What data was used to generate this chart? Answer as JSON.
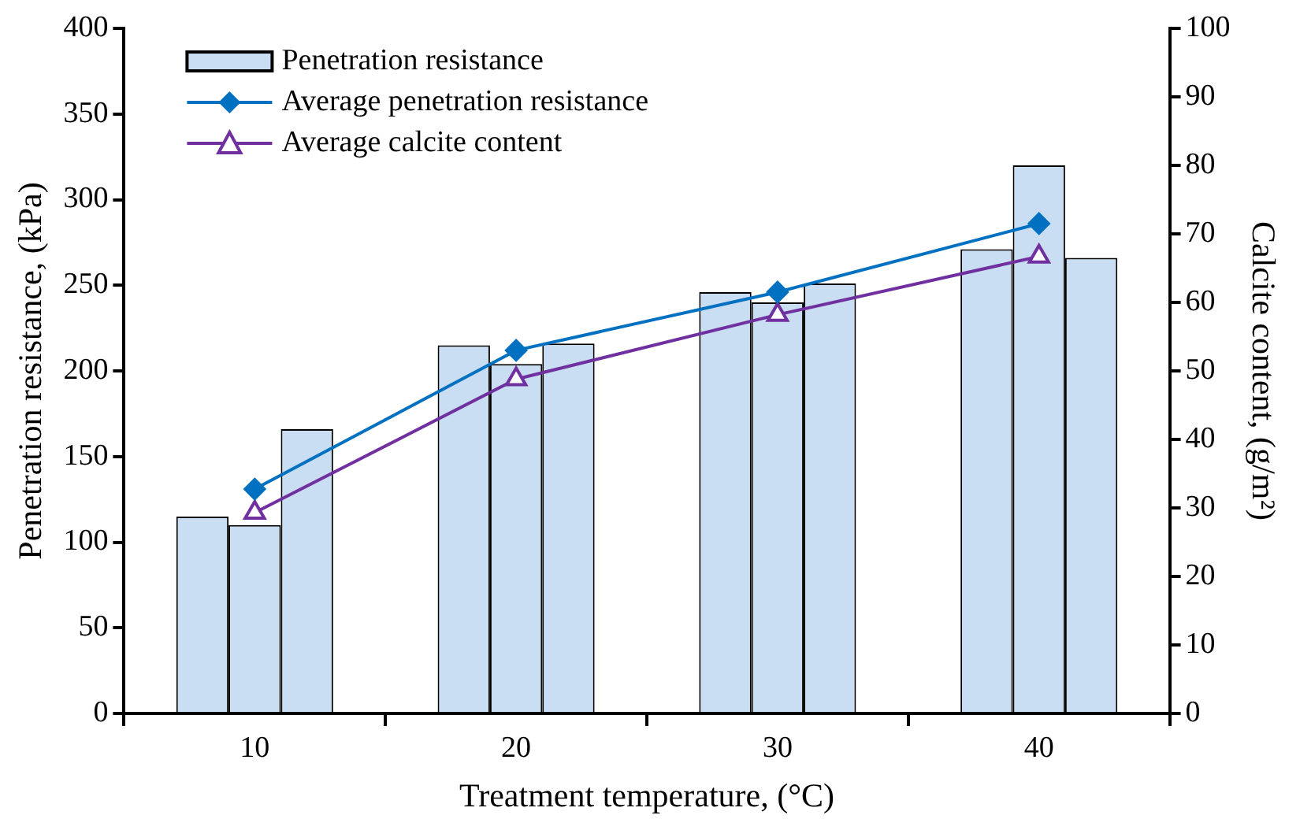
{
  "chart_data": {
    "type": "bar",
    "xlabel": "Treatment temperature, (°C)",
    "ylabel": "Penetration resistance, (kPa)",
    "y2label": "Calcite content, (g/m²)",
    "categories": [
      "10",
      "20",
      "30",
      "40"
    ],
    "series": [
      {
        "name": "Penetration resistance",
        "color": "#c9def2",
        "values": [
          115,
          215,
          246,
          271
        ]
      },
      {
        "color": "#c9def2",
        "values": [
          110,
          204,
          240,
          320
        ]
      },
      {
        "color": "#c9def2",
        "values": [
          166,
          216,
          251,
          266
        ]
      },
      {
        "type": "line",
        "name": "Average penetration resistance",
        "color": "#0070c0",
        "marker": "diamond",
        "values": [
          131,
          212,
          246,
          286
        ]
      },
      {
        "type": "line",
        "name": "Average calcite content",
        "color": "#7030a0",
        "marker": "triangle",
        "axis": "y2",
        "values": [
          29.3,
          48.8,
          58.2,
          66.7
        ]
      }
    ],
    "ylim": [
      0,
      400
    ],
    "yticks": [
      0,
      50,
      100,
      150,
      200,
      250,
      300,
      350,
      400
    ],
    "y2lim": [
      0,
      100
    ],
    "y2ticks": [
      0,
      10,
      20,
      30,
      40,
      50,
      60,
      70,
      80,
      90,
      100
    ],
    "legend": "top left"
  }
}
